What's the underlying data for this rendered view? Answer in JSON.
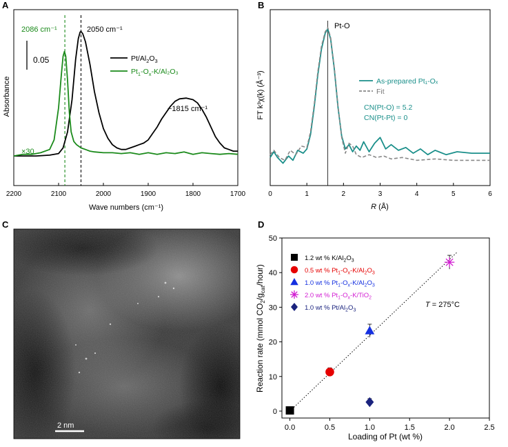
{
  "panels": {
    "A": {
      "letter": "A",
      "xlabel": "Wave numbers (cm⁻¹)",
      "ylabel": "Absorbance",
      "xticks": [
        "2200",
        "2100",
        "2000",
        "1900",
        "1800",
        "1700"
      ],
      "scalebar_label": "0.05",
      "annotations": {
        "green_peak": "2086 cm⁻¹",
        "black_peak": "2050 cm⁻¹",
        "broad_peak": "~1815 cm⁻¹",
        "scale_factor": "×30"
      },
      "legend": [
        {
          "base": "Pt/Al",
          "sub1": "2",
          "mid": "O",
          "sub2": "3",
          "tail": "",
          "color": "#000000"
        },
        {
          "base": "Pt",
          "sub1": "1",
          "mid": "-O",
          "sub2": "x",
          "tail": "-K/Al₂O₃",
          "color": "#1a8a1a"
        }
      ]
    },
    "B": {
      "letter": "B",
      "ylabel": "FT k³χ(k) (Å⁻³)",
      "xlabel_italic": "R",
      "xlabel_rest": " (Å)",
      "xticks": [
        "0",
        "1",
        "2",
        "3",
        "4",
        "5",
        "6"
      ],
      "peak_label": "Pt-O",
      "legend": [
        {
          "label": "As-prepared Pt₁-Oₓ",
          "color": "#1a8f8a"
        },
        {
          "label": "Fit",
          "color": "#888888"
        }
      ],
      "cn1": "CN(Pt-O) = 5.2",
      "cn2": "CN(Pt-Pt) = 0"
    },
    "C": {
      "letter": "C",
      "scalebar_label": "2 nm"
    },
    "D": {
      "letter": "D",
      "temperature_label": "T = 275°C"
    }
  },
  "colors": {
    "green": "#1a8a1a",
    "teal": "#1a8f8a",
    "fit_gray": "#888888",
    "red": "#e60000",
    "blue": "#1530e0",
    "magenta": "#d21dd2",
    "navy": "#1a237e"
  },
  "chart_data": [
    {
      "panel": "A",
      "type": "line",
      "title": "",
      "xlabel": "Wave numbers (cm⁻¹)",
      "ylabel": "Absorbance",
      "xlim": [
        2200,
        1700
      ],
      "ylim": [
        0,
        1
      ],
      "series": [
        {
          "name": "Pt/Al₂O₃",
          "color": "#000000",
          "points": [
            [
              2200,
              0.15
            ],
            [
              2150,
              0.15
            ],
            [
              2120,
              0.155
            ],
            [
              2100,
              0.165
            ],
            [
              2090,
              0.2
            ],
            [
              2080,
              0.3
            ],
            [
              2070,
              0.5
            ],
            [
              2062,
              0.75
            ],
            [
              2056,
              0.88
            ],
            [
              2052,
              0.92
            ],
            [
              2050,
              0.925
            ],
            [
              2046,
              0.91
            ],
            [
              2040,
              0.86
            ],
            [
              2030,
              0.72
            ],
            [
              2020,
              0.55
            ],
            [
              2010,
              0.42
            ],
            [
              2000,
              0.32
            ],
            [
              1990,
              0.26
            ],
            [
              1980,
              0.22
            ],
            [
              1970,
              0.2
            ],
            [
              1960,
              0.19
            ],
            [
              1950,
              0.19
            ],
            [
              1940,
              0.2
            ],
            [
              1930,
              0.21
            ],
            [
              1920,
              0.22
            ],
            [
              1910,
              0.23
            ],
            [
              1900,
              0.25
            ],
            [
              1890,
              0.29
            ],
            [
              1880,
              0.33
            ],
            [
              1870,
              0.38
            ],
            [
              1860,
              0.42
            ],
            [
              1850,
              0.46
            ],
            [
              1840,
              0.49
            ],
            [
              1830,
              0.505
            ],
            [
              1815,
              0.51
            ],
            [
              1800,
              0.5
            ],
            [
              1790,
              0.48
            ],
            [
              1780,
              0.44
            ],
            [
              1770,
              0.39
            ],
            [
              1760,
              0.33
            ],
            [
              1750,
              0.27
            ],
            [
              1740,
              0.23
            ],
            [
              1730,
              0.2
            ],
            [
              1720,
              0.19
            ],
            [
              1710,
              0.18
            ],
            [
              1700,
              0.18
            ]
          ]
        },
        {
          "name": "Pt₁-Oₓ-K/Al₂O₃ (×30)",
          "color": "#1a8a1a",
          "points": [
            [
              2200,
              0.15
            ],
            [
              2180,
              0.16
            ],
            [
              2160,
              0.16
            ],
            [
              2140,
              0.17
            ],
            [
              2120,
              0.19
            ],
            [
              2110,
              0.25
            ],
            [
              2100,
              0.45
            ],
            [
              2094,
              0.65
            ],
            [
              2090,
              0.77
            ],
            [
              2087,
              0.8
            ],
            [
              2084,
              0.77
            ],
            [
              2080,
              0.62
            ],
            [
              2076,
              0.42
            ],
            [
              2072,
              0.3
            ],
            [
              2066,
              0.24
            ],
            [
              2060,
              0.22
            ],
            [
              2050,
              0.2
            ],
            [
              2040,
              0.19
            ],
            [
              2030,
              0.18
            ],
            [
              2020,
              0.175
            ],
            [
              2000,
              0.17
            ],
            [
              1980,
              0.17
            ],
            [
              1960,
              0.165
            ],
            [
              1940,
              0.17
            ],
            [
              1920,
              0.16
            ],
            [
              1900,
              0.17
            ],
            [
              1880,
              0.16
            ],
            [
              1860,
              0.17
            ],
            [
              1840,
              0.165
            ],
            [
              1820,
              0.175
            ],
            [
              1800,
              0.16
            ],
            [
              1780,
              0.17
            ],
            [
              1760,
              0.165
            ],
            [
              1740,
              0.16
            ],
            [
              1720,
              0.165
            ],
            [
              1700,
              0.16
            ]
          ]
        }
      ],
      "vlines": [
        {
          "x": 2086,
          "color": "#1a8a1a",
          "style": "dashed"
        },
        {
          "x": 2050,
          "color": "#000000",
          "style": "dashed"
        }
      ]
    },
    {
      "panel": "B",
      "type": "line",
      "title": "",
      "xlabel": "R (Å)",
      "ylabel": "FT k³χ(k) (Å⁻³)",
      "xlim": [
        0,
        6
      ],
      "ylim": [
        0,
        1
      ],
      "xticks": [
        0,
        1,
        2,
        3,
        4,
        5,
        6
      ],
      "vline": 1.57,
      "series": [
        {
          "name": "As-prepared Pt₁-Oₓ",
          "color": "#1a8f8a",
          "style": "solid",
          "points": [
            [
              0,
              0.1
            ],
            [
              0.1,
              0.14
            ],
            [
              0.2,
              0.1
            ],
            [
              0.35,
              0.06
            ],
            [
              0.5,
              0.11
            ],
            [
              0.62,
              0.08
            ],
            [
              0.75,
              0.15
            ],
            [
              0.9,
              0.13
            ],
            [
              1.0,
              0.16
            ],
            [
              1.1,
              0.26
            ],
            [
              1.2,
              0.45
            ],
            [
              1.3,
              0.68
            ],
            [
              1.4,
              0.86
            ],
            [
              1.5,
              0.97
            ],
            [
              1.57,
              1.0
            ],
            [
              1.65,
              0.93
            ],
            [
              1.75,
              0.72
            ],
            [
              1.85,
              0.45
            ],
            [
              1.95,
              0.25
            ],
            [
              2.05,
              0.16
            ],
            [
              2.15,
              0.19
            ],
            [
              2.25,
              0.14
            ],
            [
              2.35,
              0.18
            ],
            [
              2.45,
              0.15
            ],
            [
              2.55,
              0.21
            ],
            [
              2.7,
              0.14
            ],
            [
              2.85,
              0.2
            ],
            [
              3.0,
              0.24
            ],
            [
              3.15,
              0.16
            ],
            [
              3.3,
              0.19
            ],
            [
              3.5,
              0.15
            ],
            [
              3.7,
              0.17
            ],
            [
              3.9,
              0.13
            ],
            [
              4.1,
              0.16
            ],
            [
              4.3,
              0.12
            ],
            [
              4.5,
              0.15
            ],
            [
              4.8,
              0.12
            ],
            [
              5.1,
              0.14
            ],
            [
              5.5,
              0.13
            ],
            [
              6.0,
              0.13
            ]
          ]
        },
        {
          "name": "Fit",
          "color": "#888888",
          "style": "dashed",
          "points": [
            [
              0,
              0.12
            ],
            [
              0.1,
              0.15
            ],
            [
              0.25,
              0.1
            ],
            [
              0.4,
              0.08
            ],
            [
              0.55,
              0.15
            ],
            [
              0.7,
              0.12
            ],
            [
              0.85,
              0.18
            ],
            [
              1.0,
              0.17
            ],
            [
              1.1,
              0.28
            ],
            [
              1.2,
              0.47
            ],
            [
              1.3,
              0.7
            ],
            [
              1.4,
              0.88
            ],
            [
              1.5,
              0.98
            ],
            [
              1.57,
              1.01
            ],
            [
              1.65,
              0.94
            ],
            [
              1.75,
              0.73
            ],
            [
              1.85,
              0.46
            ],
            [
              1.95,
              0.24
            ],
            [
              2.05,
              0.13
            ],
            [
              2.15,
              0.2
            ],
            [
              2.25,
              0.18
            ],
            [
              2.35,
              0.12
            ],
            [
              2.5,
              0.1
            ],
            [
              2.7,
              0.12
            ],
            [
              2.9,
              0.1
            ],
            [
              3.1,
              0.11
            ],
            [
              3.3,
              0.09
            ],
            [
              3.6,
              0.1
            ],
            [
              4.0,
              0.08
            ],
            [
              4.5,
              0.09
            ],
            [
              5.0,
              0.08
            ],
            [
              5.5,
              0.08
            ],
            [
              6.0,
              0.08
            ]
          ]
        }
      ]
    },
    {
      "panel": "D",
      "type": "scatter",
      "title": "",
      "xlabel": "Loading of Pt (wt %)",
      "ylabel": "Reaction rate (mmol CO₂/gₒₐₜ/hour)",
      "xlim": [
        -0.1,
        2.5
      ],
      "ylim": [
        -2,
        50
      ],
      "xticks": [
        0.0,
        0.5,
        1.0,
        1.5,
        2.0,
        2.5
      ],
      "xtick_labels": [
        "0.0",
        "0.5",
        "1.0",
        "1.5",
        "2.0",
        "2.5"
      ],
      "yticks": [
        0,
        10,
        20,
        30,
        40,
        50
      ],
      "ytick_labels": [
        "0",
        "10",
        "20",
        "30",
        "40",
        "50"
      ],
      "fit_line": {
        "x": [
          0.0,
          2.1
        ],
        "y": [
          0.0,
          46.0
        ],
        "style": "dotted"
      },
      "points": [
        {
          "name": "1.2 wt % K/Al2O3",
          "x": 0.0,
          "y": 0.2,
          "err": 0.6,
          "marker": "square",
          "color": "#000000"
        },
        {
          "name": "0.5 wt % Pt1-Ox-K/Al2O3",
          "x": 0.5,
          "y": 11.3,
          "err": 1.2,
          "marker": "circle",
          "color": "#e60000"
        },
        {
          "name": "1.0 wt % Pt1-Ox-K/Al2O3",
          "x": 1.0,
          "y": 23.2,
          "err": 1.9,
          "marker": "triangle",
          "color": "#1530e0"
        },
        {
          "name": "2.0 wt % Pt1-Ox-K/TiO2",
          "x": 2.0,
          "y": 43.0,
          "err": 2.0,
          "marker": "star",
          "color": "#d21dd2"
        },
        {
          "name": "1.0 wt % Pt/Al2O3",
          "x": 1.0,
          "y": 2.6,
          "err": 1.0,
          "marker": "diamond",
          "color": "#1a237e"
        }
      ],
      "legend": [
        {
          "parts": [
            [
              "t",
              "1.2 wt % K/Al"
            ],
            [
              "s",
              "2"
            ],
            [
              "t",
              "O"
            ],
            [
              "s",
              "3"
            ]
          ],
          "marker": "square",
          "color": "#000000"
        },
        {
          "parts": [
            [
              "t",
              "0.5 wt % Pt"
            ],
            [
              "s",
              "1"
            ],
            [
              "t",
              "-O"
            ],
            [
              "s",
              "x"
            ],
            [
              "t",
              "-K/Al"
            ],
            [
              "s",
              "2"
            ],
            [
              "t",
              "O"
            ],
            [
              "s",
              "3"
            ]
          ],
          "marker": "circle",
          "color": "#e60000"
        },
        {
          "parts": [
            [
              "t",
              "1.0 wt % Pt"
            ],
            [
              "s",
              "1"
            ],
            [
              "t",
              "-O"
            ],
            [
              "s",
              "x"
            ],
            [
              "t",
              "-K/Al"
            ],
            [
              "s",
              "2"
            ],
            [
              "t",
              "O"
            ],
            [
              "s",
              "3"
            ]
          ],
          "marker": "triangle",
          "color": "#1530e0"
        },
        {
          "parts": [
            [
              "t",
              "2.0 wt % Pt"
            ],
            [
              "s",
              "1"
            ],
            [
              "t",
              "-O"
            ],
            [
              "s",
              "x"
            ],
            [
              "t",
              "-K/TiO"
            ],
            [
              "s",
              "2"
            ]
          ],
          "marker": "star",
          "color": "#d21dd2"
        },
        {
          "parts": [
            [
              "t",
              "1.0 wt % Pt/Al"
            ],
            [
              "s",
              "2"
            ],
            [
              "t",
              "O"
            ],
            [
              "s",
              "3"
            ]
          ],
          "marker": "diamond",
          "color": "#1a237e"
        }
      ]
    }
  ]
}
